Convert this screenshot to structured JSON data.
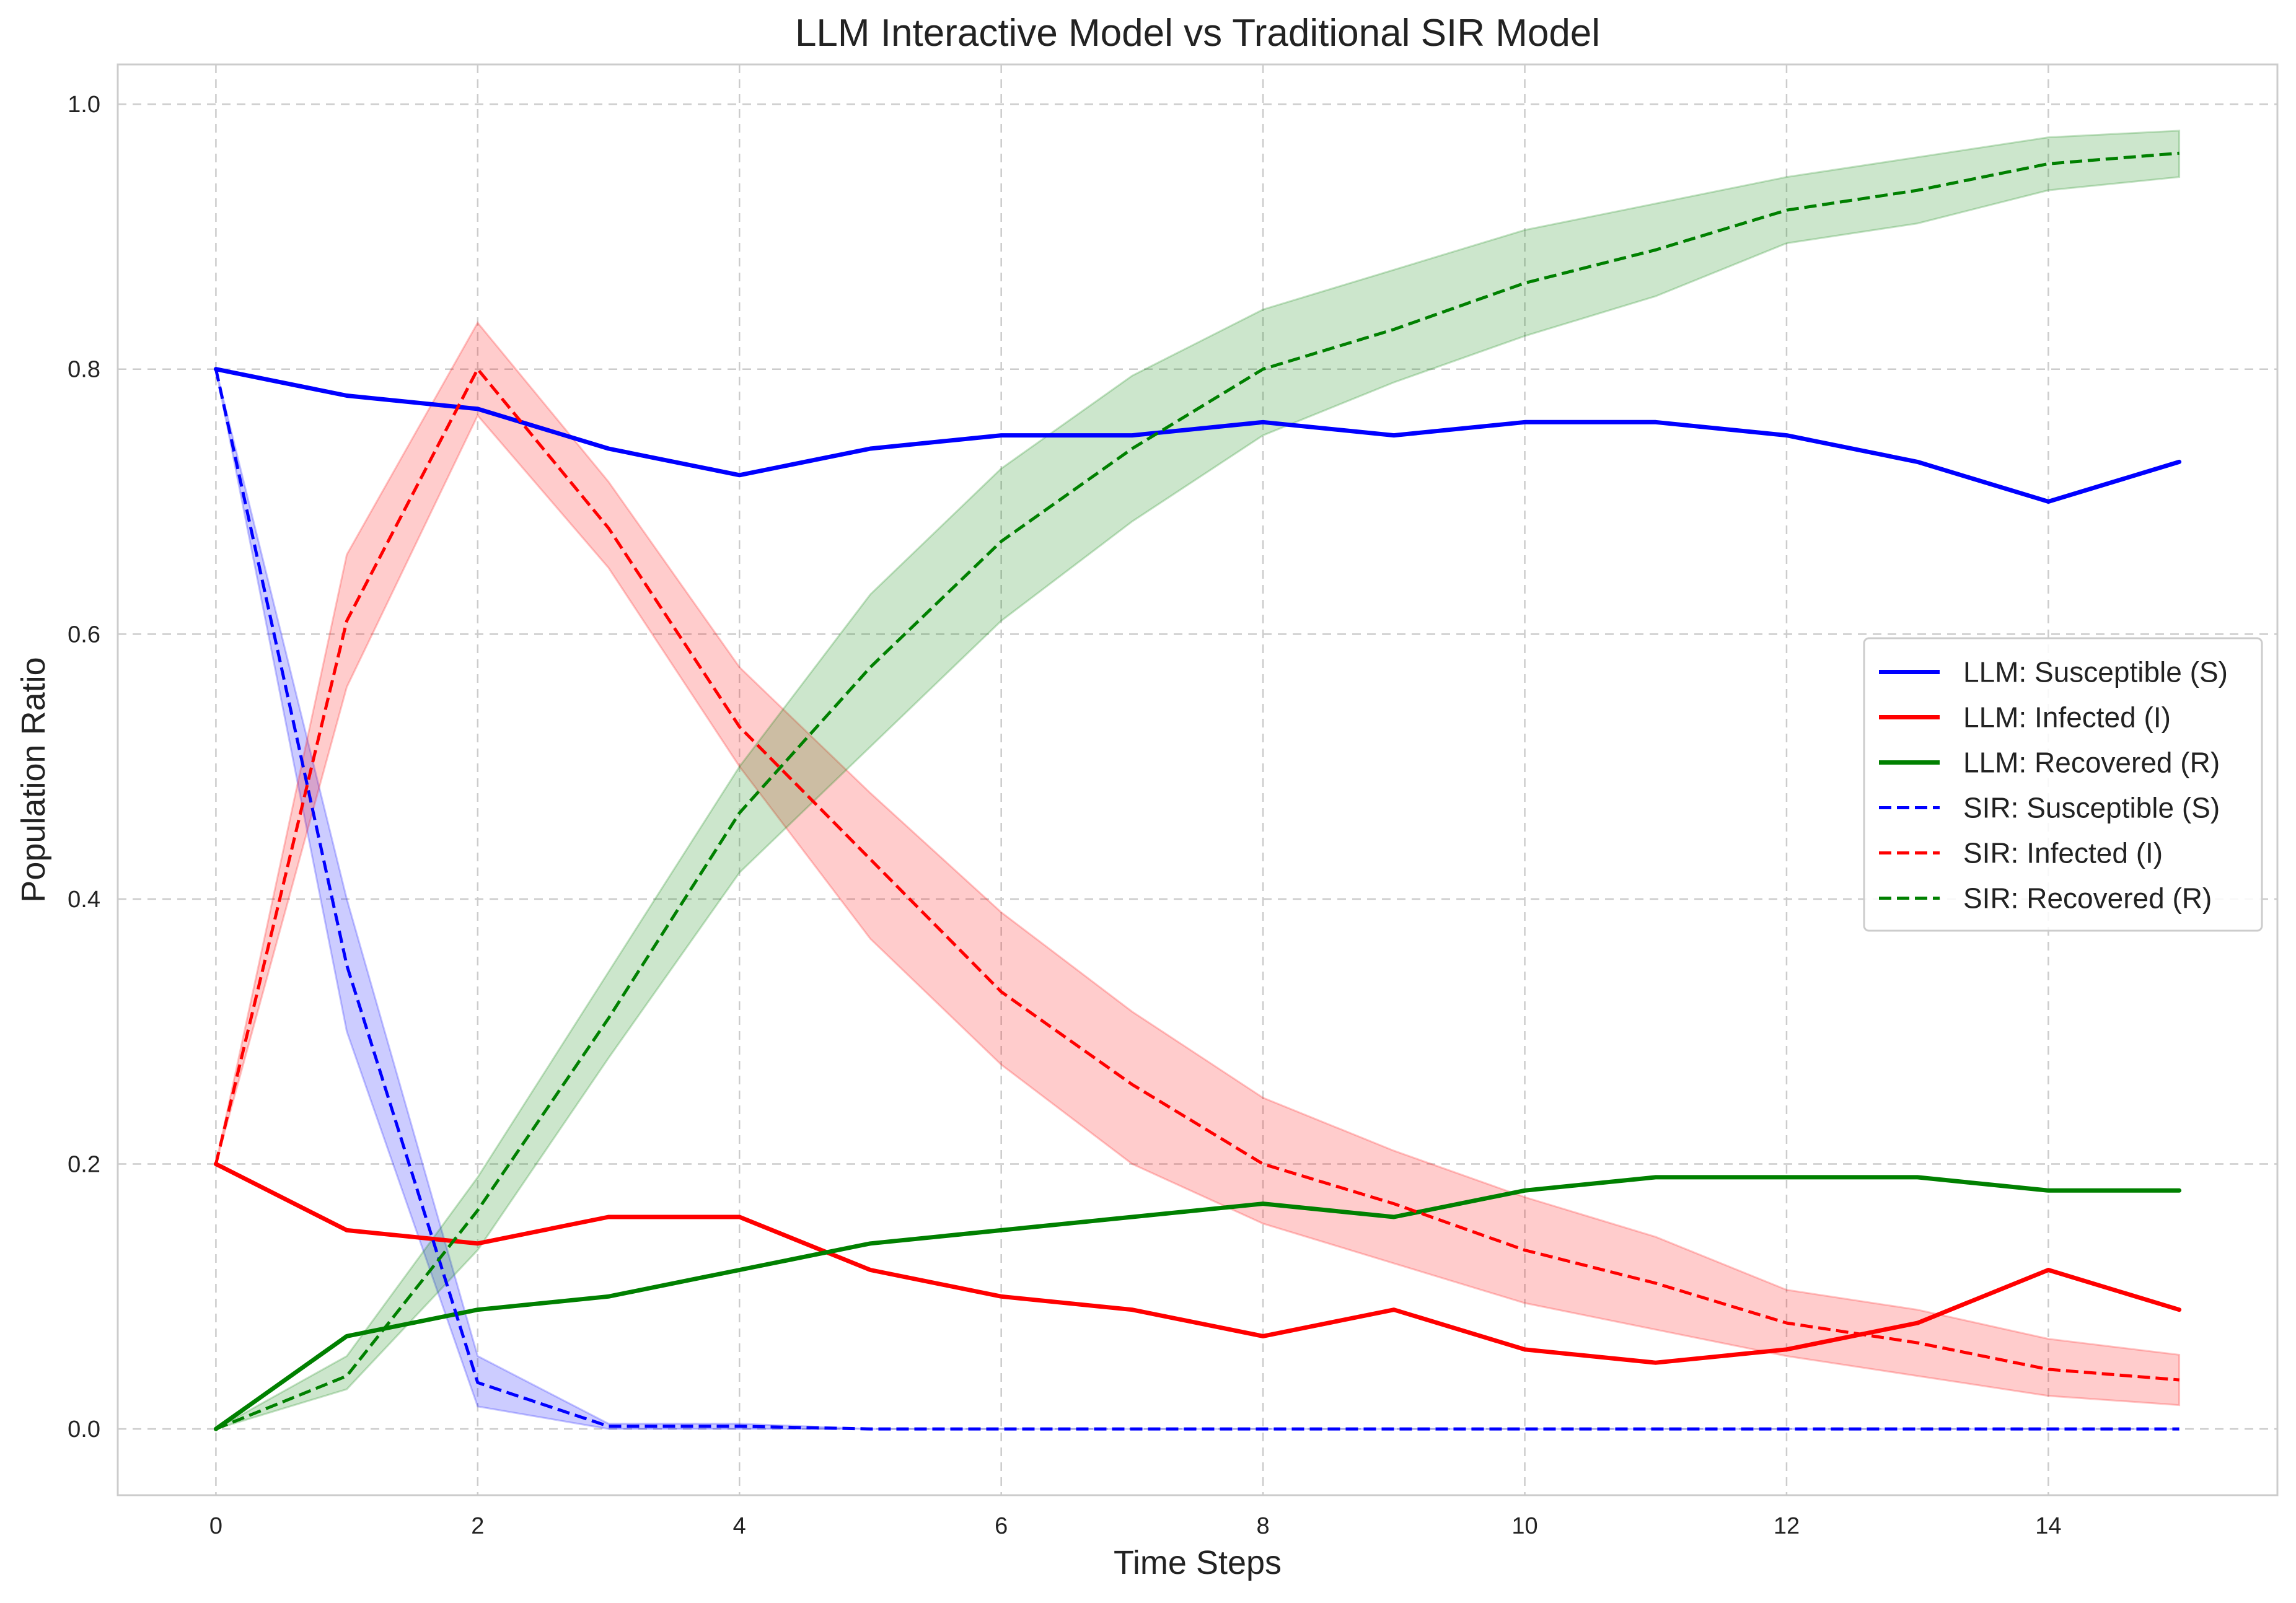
{
  "chart_data": {
    "type": "line",
    "title": "LLM Interactive Model vs Traditional SIR Model",
    "xlabel": "Time Steps",
    "ylabel": "Population Ratio",
    "xlim": [
      -0.75,
      15.75
    ],
    "ylim": [
      -0.05,
      1.03
    ],
    "x_ticks": [
      "0",
      "2",
      "4",
      "6",
      "8",
      "10",
      "12",
      "14"
    ],
    "y_ticks": [
      "0.0",
      "0.2",
      "0.4",
      "0.6",
      "0.8",
      "1.0"
    ],
    "grid": true,
    "legend_position": "center-right",
    "x": [
      0,
      1,
      2,
      3,
      4,
      5,
      6,
      7,
      8,
      9,
      10,
      11,
      12,
      13,
      14,
      15
    ],
    "series": [
      {
        "name": "LLM: Susceptible (S)",
        "color": "#0000ff",
        "style": "solid",
        "values": [
          0.8,
          0.78,
          0.77,
          0.74,
          0.72,
          0.74,
          0.75,
          0.75,
          0.76,
          0.75,
          0.76,
          0.76,
          0.75,
          0.73,
          0.7,
          0.73
        ]
      },
      {
        "name": "LLM: Infected (I)",
        "color": "#ff0000",
        "style": "solid",
        "values": [
          0.2,
          0.15,
          0.14,
          0.16,
          0.16,
          0.12,
          0.1,
          0.09,
          0.07,
          0.09,
          0.06,
          0.05,
          0.06,
          0.08,
          0.12,
          0.09
        ]
      },
      {
        "name": "LLM: Recovered (R)",
        "color": "#008000",
        "style": "solid",
        "values": [
          0.0,
          0.07,
          0.09,
          0.1,
          0.12,
          0.14,
          0.15,
          0.16,
          0.17,
          0.16,
          0.18,
          0.19,
          0.19,
          0.19,
          0.18,
          0.18
        ]
      },
      {
        "name": "SIR: Susceptible (S)",
        "color": "#0000ff",
        "style": "dashed",
        "values": [
          0.8,
          0.35,
          0.035,
          0.002,
          0.002,
          0.0,
          0.0,
          0.0,
          0.0,
          0.0,
          0.0,
          0.0,
          0.0,
          0.0,
          0.0,
          0.0
        ],
        "band_lower": [
          0.8,
          0.3,
          0.017,
          0.0,
          0.0,
          0.0,
          0.0,
          0.0,
          0.0,
          0.0,
          0.0,
          0.0,
          0.0,
          0.0,
          0.0,
          0.0
        ],
        "band_upper": [
          0.8,
          0.4,
          0.055,
          0.004,
          0.004,
          0.0,
          0.0,
          0.0,
          0.0,
          0.0,
          0.0,
          0.0,
          0.0,
          0.0,
          0.0,
          0.0
        ]
      },
      {
        "name": "SIR: Infected (I)",
        "color": "#ff0000",
        "style": "dashed",
        "values": [
          0.2,
          0.61,
          0.8,
          0.68,
          0.53,
          0.43,
          0.33,
          0.26,
          0.2,
          0.17,
          0.135,
          0.11,
          0.08,
          0.065,
          0.045,
          0.037
        ],
        "band_lower": [
          0.2,
          0.56,
          0.765,
          0.65,
          0.5,
          0.37,
          0.275,
          0.2,
          0.155,
          0.125,
          0.095,
          0.075,
          0.055,
          0.04,
          0.025,
          0.018
        ],
        "band_upper": [
          0.2,
          0.66,
          0.835,
          0.715,
          0.575,
          0.48,
          0.39,
          0.315,
          0.25,
          0.21,
          0.175,
          0.145,
          0.105,
          0.09,
          0.068,
          0.056
        ]
      },
      {
        "name": "SIR: Recovered (R)",
        "color": "#008000",
        "style": "dashed",
        "values": [
          0.0,
          0.04,
          0.165,
          0.31,
          0.465,
          0.575,
          0.67,
          0.74,
          0.8,
          0.83,
          0.865,
          0.89,
          0.92,
          0.935,
          0.955,
          0.963
        ],
        "band_lower": [
          0.0,
          0.03,
          0.135,
          0.28,
          0.42,
          0.515,
          0.61,
          0.685,
          0.75,
          0.79,
          0.825,
          0.855,
          0.895,
          0.91,
          0.935,
          0.945
        ],
        "band_upper": [
          0.0,
          0.055,
          0.19,
          0.345,
          0.5,
          0.63,
          0.725,
          0.795,
          0.845,
          0.875,
          0.905,
          0.925,
          0.945,
          0.96,
          0.975,
          0.98
        ]
      }
    ]
  }
}
